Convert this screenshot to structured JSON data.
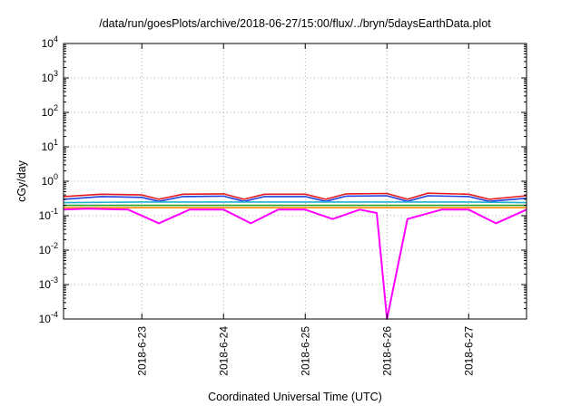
{
  "chart_data": {
    "type": "line",
    "title": "/data/run/goesPlots/archive/2018-06-27/15:00/flux/../bryn/5daysEarthData.plot",
    "xlabel": "Coordinated Universal Time (UTC)",
    "ylabel": "cGy/day",
    "yscale": "log",
    "ylim": [
      0.0001,
      10000
    ],
    "xlim": [
      "2018-06-22T01:00",
      "2018-06-27T17:00"
    ],
    "x_ticks": [
      {
        "label": "2018-6-23",
        "date": "2018-06-23T00:00"
      },
      {
        "label": "2018-6-24",
        "date": "2018-06-24T00:00"
      },
      {
        "label": "2018-6-25",
        "date": "2018-06-25T00:00"
      },
      {
        "label": "2018-6-26",
        "date": "2018-06-26T00:00"
      },
      {
        "label": "2018-6-27",
        "date": "2018-06-27T00:00"
      }
    ],
    "y_ticks": [
      {
        "base": "10",
        "exp": "-4",
        "value": 0.0001
      },
      {
        "base": "10",
        "exp": "-3",
        "value": 0.001
      },
      {
        "base": "10",
        "exp": "-2",
        "value": 0.01
      },
      {
        "base": "10",
        "exp": "-1",
        "value": 0.1
      },
      {
        "base": "10",
        "exp": "0",
        "value": 1
      },
      {
        "base": "10",
        "exp": "1",
        "value": 10
      },
      {
        "base": "10",
        "exp": "2",
        "value": 100
      },
      {
        "base": "10",
        "exp": "3",
        "value": 1000
      },
      {
        "base": "10",
        "exp": "4",
        "value": 10000
      }
    ],
    "grid": true,
    "series": [
      {
        "color": "#e41a1c",
        "x": [
          "2018-06-22T01:00",
          "2018-06-22T12:00",
          "2018-06-23T00:00",
          "2018-06-23T05:00",
          "2018-06-23T12:00",
          "2018-06-24T00:00",
          "2018-06-24T06:00",
          "2018-06-24T12:00",
          "2018-06-25T00:00",
          "2018-06-25T06:00",
          "2018-06-25T12:00",
          "2018-06-26T00:00",
          "2018-06-26T06:00",
          "2018-06-26T12:00",
          "2018-06-27T00:00",
          "2018-06-27T06:00",
          "2018-06-27T17:00"
        ],
        "values": [
          0.36,
          0.42,
          0.4,
          0.3,
          0.42,
          0.43,
          0.3,
          0.42,
          0.42,
          0.3,
          0.43,
          0.44,
          0.3,
          0.45,
          0.42,
          0.3,
          0.38
        ]
      },
      {
        "color": "#1f3fe0",
        "x": [
          "2018-06-22T01:00",
          "2018-06-22T12:00",
          "2018-06-23T00:00",
          "2018-06-23T05:00",
          "2018-06-23T12:00",
          "2018-06-24T00:00",
          "2018-06-24T06:00",
          "2018-06-24T12:00",
          "2018-06-25T00:00",
          "2018-06-25T06:00",
          "2018-06-25T12:00",
          "2018-06-26T00:00",
          "2018-06-26T06:00",
          "2018-06-26T12:00",
          "2018-06-27T00:00",
          "2018-06-27T06:00",
          "2018-06-27T17:00"
        ],
        "values": [
          0.3,
          0.36,
          0.34,
          0.26,
          0.36,
          0.37,
          0.26,
          0.36,
          0.36,
          0.26,
          0.37,
          0.38,
          0.26,
          0.38,
          0.36,
          0.26,
          0.32
        ]
      },
      {
        "color": "#1fb0d0",
        "x": [
          "2018-06-22T01:00",
          "2018-06-23T00:00",
          "2018-06-24T00:00",
          "2018-06-25T00:00",
          "2018-06-26T00:00",
          "2018-06-27T00:00",
          "2018-06-27T17:00"
        ],
        "values": [
          0.24,
          0.25,
          0.25,
          0.25,
          0.25,
          0.25,
          0.24
        ]
      },
      {
        "color": "#2ca02c",
        "x": [
          "2018-06-22T01:00",
          "2018-06-23T00:00",
          "2018-06-24T00:00",
          "2018-06-25T00:00",
          "2018-06-26T00:00",
          "2018-06-27T00:00",
          "2018-06-27T17:00"
        ],
        "values": [
          0.2,
          0.2,
          0.2,
          0.2,
          0.2,
          0.2,
          0.2
        ]
      },
      {
        "color": "#ff8c00",
        "x": [
          "2018-06-22T01:00",
          "2018-06-23T00:00",
          "2018-06-24T00:00",
          "2018-06-25T00:00",
          "2018-06-26T00:00",
          "2018-06-27T00:00",
          "2018-06-27T17:00"
        ],
        "values": [
          0.17,
          0.17,
          0.17,
          0.17,
          0.17,
          0.17,
          0.17
        ]
      },
      {
        "color": "#ff00ff",
        "x": [
          "2018-06-22T01:00",
          "2018-06-22T08:00",
          "2018-06-22T20:00",
          "2018-06-23T05:00",
          "2018-06-23T14:00",
          "2018-06-24T00:00",
          "2018-06-24T08:00",
          "2018-06-24T16:00",
          "2018-06-25T00:00",
          "2018-06-25T08:00",
          "2018-06-25T16:00",
          "2018-06-25T21:00",
          "2018-06-26T00:00",
          "2018-06-26T06:00",
          "2018-06-26T16:00",
          "2018-06-27T00:00",
          "2018-06-27T08:00",
          "2018-06-27T17:00"
        ],
        "values": [
          0.15,
          0.16,
          0.15,
          0.06,
          0.15,
          0.15,
          0.06,
          0.15,
          0.15,
          0.08,
          0.15,
          0.12,
          0.0001,
          0.08,
          0.15,
          0.15,
          0.06,
          0.15
        ]
      }
    ]
  }
}
